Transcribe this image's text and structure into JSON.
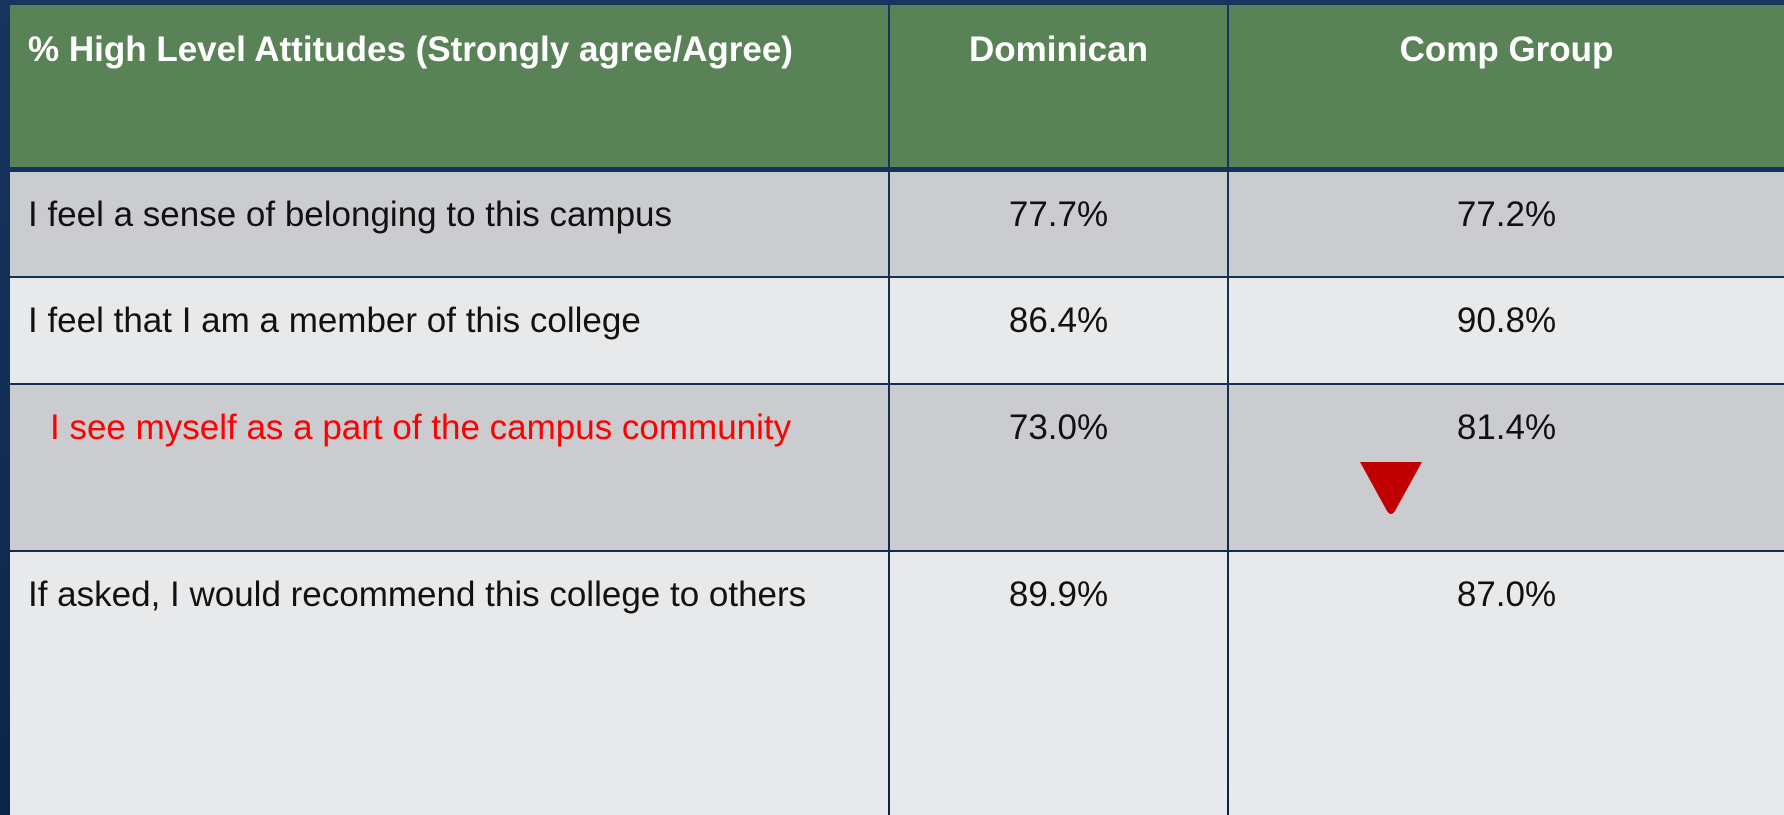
{
  "table": {
    "header": [
      "% High Level Attitudes (Strongly agree/Agree)",
      "Dominican",
      "Comp Group"
    ],
    "rows": [
      [
        "I feel a sense of belonging to this campus",
        "77.7%",
        "77.2%"
      ],
      [
        "I feel that I am a member of this college",
        "86.4%",
        "90.8%"
      ],
      [
        "I see myself as a part of the campus community",
        "73.0%",
        "81.4%"
      ],
      [
        "If asked, I would recommend this college to others",
        "89.9%",
        "87.0%"
      ]
    ]
  }
}
